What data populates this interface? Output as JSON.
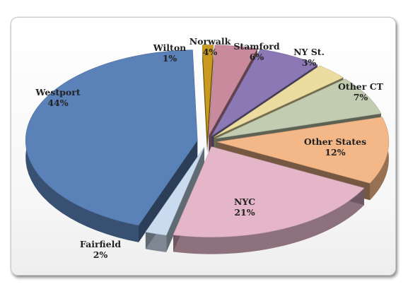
{
  "chart_data": {
    "type": "pie",
    "style": "3d-exploded",
    "title": "",
    "unit": "%",
    "categories": [
      "Westport",
      "Wilton",
      "Norwalk",
      "Stamford",
      "NY St.",
      "Other CT",
      "Other States",
      "NYC",
      "Fairfield"
    ],
    "values": [
      44,
      1,
      4,
      6,
      3,
      7,
      12,
      21,
      2
    ],
    "value_labels": [
      "44%",
      "1%",
      "4%",
      "6%",
      "3%",
      "7%",
      "12%",
      "21%",
      "2%"
    ],
    "colors": [
      "#5a82b8",
      "#c99a1e",
      "#c98a9e",
      "#8b78b4",
      "#ecdca0",
      "#c2ccb0",
      "#f3b788",
      "#e4b6c8",
      "#c9dcef"
    ],
    "legend": "none",
    "labels_position": "outside"
  }
}
